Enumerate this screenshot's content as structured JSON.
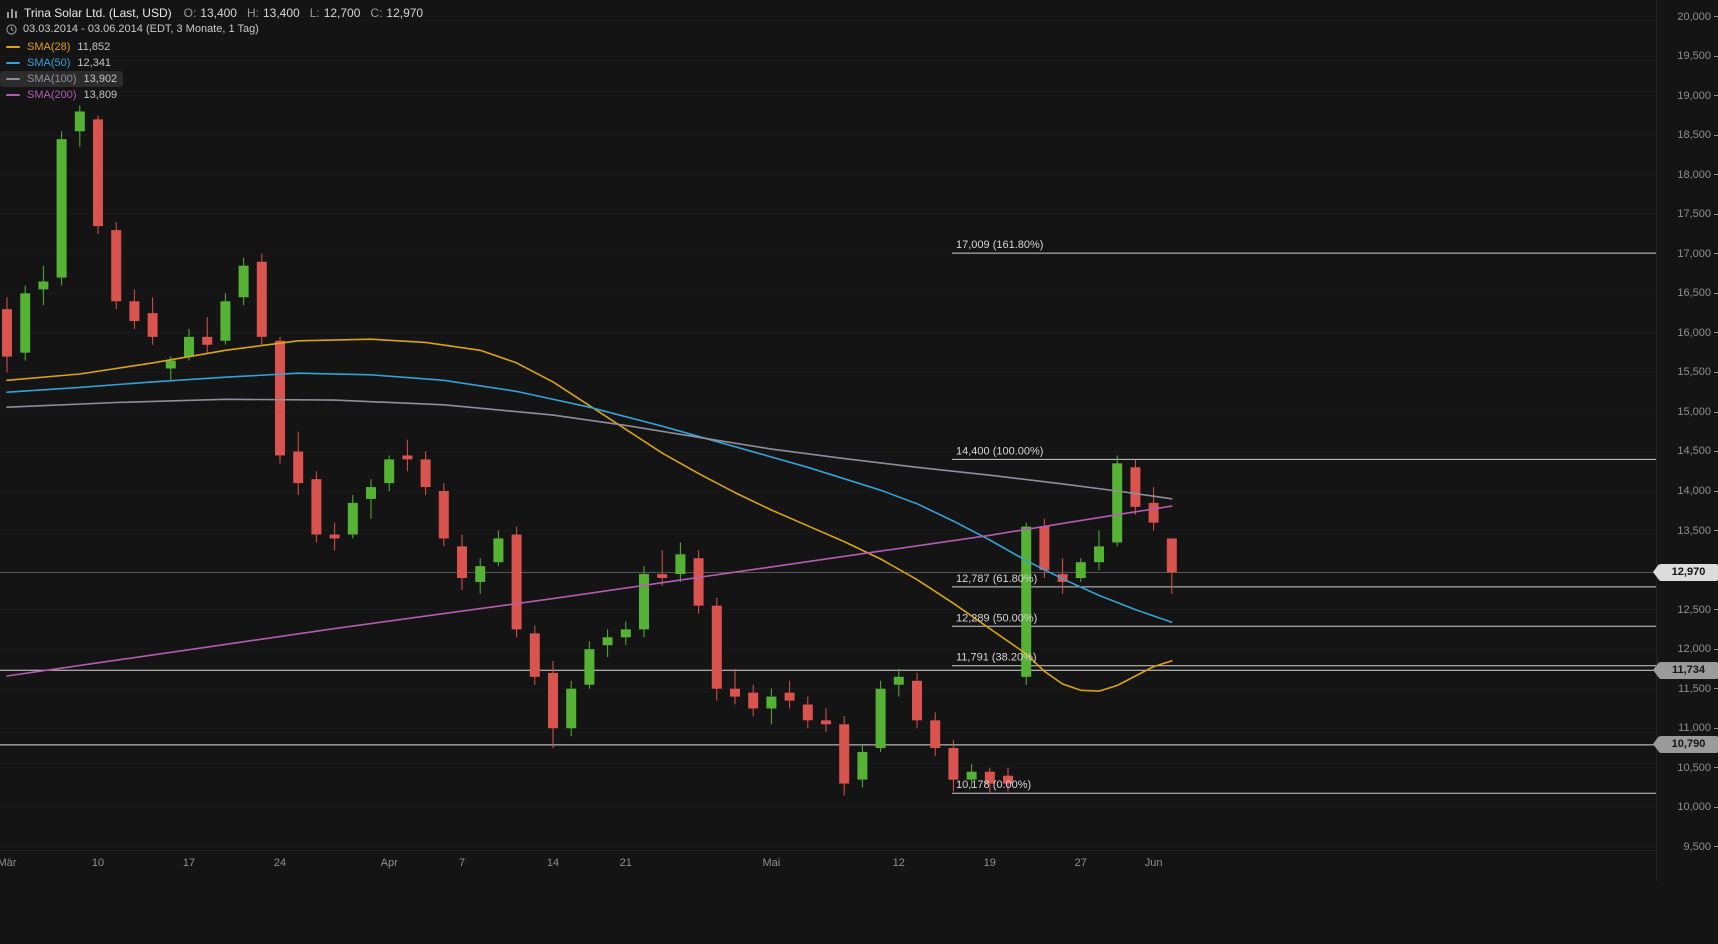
{
  "header": {
    "symbol_title": "Trina Solar Ltd. (Last, USD)",
    "ohlc": {
      "o_label": "O:",
      "o": "13,400",
      "h_label": "H:",
      "h": "13,400",
      "l_label": "L:",
      "l": "12,700",
      "c_label": "C:",
      "c": "12,970"
    },
    "date_range": "03.03.2014 - 03.06.2014 (EDT, 3 Monate, 1 Tag)"
  },
  "legend": [
    {
      "label": "SMA(28)",
      "value": "11,852",
      "color": "#dba313",
      "highlighted": false
    },
    {
      "label": "SMA(50)",
      "value": "12,341",
      "color": "#35a1d6",
      "highlighted": false
    },
    {
      "label": "SMA(100)",
      "value": "13,902",
      "color": "#8f8f9c",
      "highlighted": true
    },
    {
      "label": "SMA(200)",
      "value": "13,809",
      "color": "#b45cb4",
      "highlighted": false
    }
  ],
  "colors": {
    "background": "#141414",
    "up": "#55b234",
    "down": "#d9534f",
    "grid": "#1a1a1a",
    "axis_text": "#8f8f8f",
    "fib_line": "#cdcdcd",
    "fib_text": "#d6d6d6",
    "alert_line": "#dcdcdc",
    "last_price_line": "#565656"
  },
  "fib_levels": [
    {
      "label": "17,009 (161.80%)",
      "value": 17009
    },
    {
      "label": "14,400 (100.00%)",
      "value": 14400
    },
    {
      "label": "12,787 (61.80%)",
      "value": 12787
    },
    {
      "label": "12,289 (50.00%)",
      "value": 12289
    },
    {
      "label": "11,791 (38.20%)",
      "value": 11791
    },
    {
      "label": "10,178 (0.00%)",
      "value": 10178
    }
  ],
  "price_tags": [
    {
      "label": "12,970",
      "value": 12970,
      "variant": "last"
    },
    {
      "label": "11,734",
      "value": 11734,
      "variant": "alert"
    },
    {
      "label": "10,790",
      "value": 10790,
      "variant": "alert"
    }
  ],
  "y_axis": {
    "ticks": [
      {
        "label": "20,000",
        "value": 20000
      },
      {
        "label": "19,500",
        "value": 19500
      },
      {
        "label": "19,000",
        "value": 19000
      },
      {
        "label": "18,500",
        "value": 18500
      },
      {
        "label": "18,000",
        "value": 18000
      },
      {
        "label": "17,500",
        "value": 17500
      },
      {
        "label": "17,000",
        "value": 17000
      },
      {
        "label": "16,500",
        "value": 16500
      },
      {
        "label": "16,000",
        "value": 16000
      },
      {
        "label": "15,500",
        "value": 15500
      },
      {
        "label": "15,000",
        "value": 15000
      },
      {
        "label": "14,500",
        "value": 14500
      },
      {
        "label": "14,000",
        "value": 14000
      },
      {
        "label": "13,500",
        "value": 13500
      },
      {
        "label": "13,000",
        "value": 13000
      },
      {
        "label": "12,500",
        "value": 12500
      },
      {
        "label": "12,000",
        "value": 12000
      },
      {
        "label": "11,500",
        "value": 11500
      },
      {
        "label": "11,000",
        "value": 11000
      },
      {
        "label": "10,500",
        "value": 10500
      },
      {
        "label": "10,000",
        "value": 10000
      },
      {
        "label": "9,500",
        "value": 9500
      }
    ]
  },
  "x_axis": {
    "labels": [
      {
        "label": "Mär",
        "index": 0
      },
      {
        "label": "10",
        "index": 5
      },
      {
        "label": "17",
        "index": 10
      },
      {
        "label": "24",
        "index": 15
      },
      {
        "label": "Apr",
        "index": 21
      },
      {
        "label": "7",
        "index": 25
      },
      {
        "label": "14",
        "index": 30
      },
      {
        "label": "21",
        "index": 34
      },
      {
        "label": "Mai",
        "index": 42
      },
      {
        "label": "12",
        "index": 49
      },
      {
        "label": "19",
        "index": 54
      },
      {
        "label": "27",
        "index": 59
      },
      {
        "label": "Jun",
        "index": 63
      }
    ]
  },
  "chart_data": {
    "type": "candlestick",
    "title": "Trina Solar Ltd. (Last, USD)",
    "ylim": [
      9460,
      20210
    ],
    "candles": [
      [
        "2014-03-03",
        16300,
        16450,
        15500,
        15700
      ],
      [
        "2014-03-04",
        15750,
        16600,
        15650,
        16500
      ],
      [
        "2014-03-05",
        16550,
        16850,
        16350,
        16650
      ],
      [
        "2014-03-06",
        16700,
        18550,
        16600,
        18450
      ],
      [
        "2014-03-07",
        18550,
        18875,
        18350,
        18800
      ],
      [
        "2014-03-10",
        18700,
        18750,
        17250,
        17350
      ],
      [
        "2014-03-11",
        17300,
        17400,
        16300,
        16400
      ],
      [
        "2014-03-12",
        16400,
        16550,
        16050,
        16150
      ],
      [
        "2014-03-13",
        16250,
        16450,
        15850,
        15950
      ],
      [
        "2014-03-14",
        15550,
        15700,
        15400,
        15650
      ],
      [
        "2014-03-17",
        15700,
        16050,
        15650,
        15950
      ],
      [
        "2014-03-18",
        15950,
        16200,
        15750,
        15850
      ],
      [
        "2014-03-19",
        15900,
        16500,
        15850,
        16400
      ],
      [
        "2014-03-20",
        16450,
        16950,
        16350,
        16850
      ],
      [
        "2014-03-21",
        16900,
        17000,
        15850,
        15950
      ],
      [
        "2014-03-24",
        15900,
        15950,
        14350,
        14450
      ],
      [
        "2014-03-25",
        14500,
        14750,
        13950,
        14100
      ],
      [
        "2014-03-26",
        14150,
        14250,
        13350,
        13450
      ],
      [
        "2014-03-27",
        13450,
        13600,
        13250,
        13400
      ],
      [
        "2014-03-28",
        13450,
        13950,
        13400,
        13850
      ],
      [
        "2014-03-31",
        13900,
        14150,
        13650,
        14050
      ],
      [
        "2014-04-01",
        14100,
        14450,
        14000,
        14400
      ],
      [
        "2014-04-02",
        14450,
        14650,
        14250,
        14400
      ],
      [
        "2014-04-03",
        14400,
        14500,
        13950,
        14050
      ],
      [
        "2014-04-04",
        14000,
        14100,
        13300,
        13400
      ],
      [
        "2014-04-07",
        13300,
        13450,
        12750,
        12900
      ],
      [
        "2014-04-08",
        12850,
        13150,
        12700,
        13050
      ],
      [
        "2014-04-09",
        13100,
        13500,
        13050,
        13400
      ],
      [
        "2014-04-10",
        13450,
        13550,
        12150,
        12250
      ],
      [
        "2014-04-11",
        12200,
        12300,
        11550,
        11650
      ],
      [
        "2014-04-14",
        11700,
        11850,
        10750,
        11000
      ],
      [
        "2014-04-15",
        11000,
        11600,
        10900,
        11500
      ],
      [
        "2014-04-16",
        11550,
        12100,
        11500,
        12000
      ],
      [
        "2014-04-17",
        12050,
        12250,
        11900,
        12150
      ],
      [
        "2014-04-21",
        12150,
        12350,
        12050,
        12250
      ],
      [
        "2014-04-22",
        12250,
        13050,
        12150,
        12950
      ],
      [
        "2014-04-23",
        12950,
        13250,
        12800,
        12900
      ],
      [
        "2014-04-24",
        12950,
        13350,
        12850,
        13200
      ],
      [
        "2014-04-25",
        13150,
        13250,
        12450,
        12550
      ],
      [
        "2014-04-28",
        12550,
        12650,
        11350,
        11500
      ],
      [
        "2014-04-29",
        11500,
        11750,
        11300,
        11400
      ],
      [
        "2014-04-30",
        11450,
        11550,
        11150,
        11250
      ],
      [
        "2014-05-01",
        11250,
        11500,
        11050,
        11400
      ],
      [
        "2014-05-02",
        11450,
        11600,
        11250,
        11350
      ],
      [
        "2014-05-05",
        11300,
        11400,
        11000,
        11100
      ],
      [
        "2014-05-06",
        11100,
        11250,
        10950,
        11050
      ],
      [
        "2014-05-07",
        11050,
        11150,
        10150,
        10300
      ],
      [
        "2014-05-08",
        10350,
        10800,
        10250,
        10700
      ],
      [
        "2014-05-09",
        10750,
        11600,
        10700,
        11500
      ],
      [
        "2014-05-12",
        11550,
        11750,
        11400,
        11650
      ],
      [
        "2014-05-13",
        11600,
        11700,
        11000,
        11100
      ],
      [
        "2014-05-14",
        11100,
        11200,
        10650,
        10750
      ],
      [
        "2014-05-15",
        10750,
        10850,
        10200,
        10350
      ],
      [
        "2014-05-16",
        10350,
        10550,
        10250,
        10450
      ],
      [
        "2014-05-19",
        10450,
        10500,
        10178,
        10300
      ],
      [
        "2014-05-20",
        10400,
        10500,
        10200,
        10300
      ],
      [
        "2014-05-21",
        11650,
        13600,
        11550,
        13550
      ],
      [
        "2014-05-22",
        13550,
        13650,
        12900,
        13000
      ],
      [
        "2014-05-23",
        12950,
        13150,
        12700,
        12850
      ],
      [
        "2014-05-27",
        12900,
        13150,
        12850,
        13100
      ],
      [
        "2014-05-28",
        13100,
        13500,
        13000,
        13300
      ],
      [
        "2014-05-29",
        13350,
        14450,
        13300,
        14350
      ],
      [
        "2014-05-30",
        14300,
        14400,
        13700,
        13800
      ],
      [
        "2014-06-02",
        13850,
        14050,
        13500,
        13600
      ],
      [
        "2014-06-03",
        13400,
        13400,
        12700,
        12970
      ]
    ],
    "series": [
      {
        "name": "SMA(28)",
        "points": [
          [
            0,
            15400
          ],
          [
            4,
            15480
          ],
          [
            8,
            15620
          ],
          [
            12,
            15780
          ],
          [
            16,
            15900
          ],
          [
            20,
            15920
          ],
          [
            23,
            15880
          ],
          [
            26,
            15780
          ],
          [
            28,
            15620
          ],
          [
            30,
            15380
          ],
          [
            32,
            15080
          ],
          [
            34,
            14780
          ],
          [
            36,
            14480
          ],
          [
            38,
            14220
          ],
          [
            40,
            13980
          ],
          [
            42,
            13760
          ],
          [
            44,
            13560
          ],
          [
            46,
            13360
          ],
          [
            48,
            13140
          ],
          [
            50,
            12880
          ],
          [
            52,
            12580
          ],
          [
            54,
            12260
          ],
          [
            56,
            11940
          ],
          [
            57,
            11720
          ],
          [
            58,
            11560
          ],
          [
            59,
            11480
          ],
          [
            60,
            11470
          ],
          [
            61,
            11540
          ],
          [
            62,
            11660
          ],
          [
            63,
            11780
          ],
          [
            64,
            11852
          ]
        ]
      },
      {
        "name": "SMA(50)",
        "points": [
          [
            0,
            15250
          ],
          [
            4,
            15310
          ],
          [
            8,
            15380
          ],
          [
            12,
            15440
          ],
          [
            16,
            15490
          ],
          [
            20,
            15470
          ],
          [
            24,
            15400
          ],
          [
            28,
            15260
          ],
          [
            32,
            15060
          ],
          [
            36,
            14820
          ],
          [
            40,
            14560
          ],
          [
            44,
            14300
          ],
          [
            48,
            14010
          ],
          [
            50,
            13840
          ],
          [
            52,
            13620
          ],
          [
            54,
            13380
          ],
          [
            56,
            13120
          ],
          [
            58,
            12890
          ],
          [
            60,
            12680
          ],
          [
            62,
            12500
          ],
          [
            64,
            12341
          ]
        ]
      },
      {
        "name": "SMA(100)",
        "points": [
          [
            0,
            15060
          ],
          [
            6,
            15120
          ],
          [
            12,
            15160
          ],
          [
            18,
            15150
          ],
          [
            24,
            15090
          ],
          [
            30,
            14960
          ],
          [
            34,
            14830
          ],
          [
            38,
            14680
          ],
          [
            42,
            14530
          ],
          [
            46,
            14410
          ],
          [
            50,
            14300
          ],
          [
            54,
            14200
          ],
          [
            58,
            14090
          ],
          [
            61,
            14000
          ],
          [
            64,
            13902
          ]
        ]
      },
      {
        "name": "SMA(200)",
        "points": [
          [
            0,
            11660
          ],
          [
            6,
            11860
          ],
          [
            12,
            12060
          ],
          [
            18,
            12260
          ],
          [
            24,
            12450
          ],
          [
            30,
            12640
          ],
          [
            36,
            12840
          ],
          [
            42,
            13040
          ],
          [
            48,
            13240
          ],
          [
            54,
            13440
          ],
          [
            58,
            13590
          ],
          [
            61,
            13700
          ],
          [
            64,
            13809
          ]
        ]
      }
    ]
  }
}
